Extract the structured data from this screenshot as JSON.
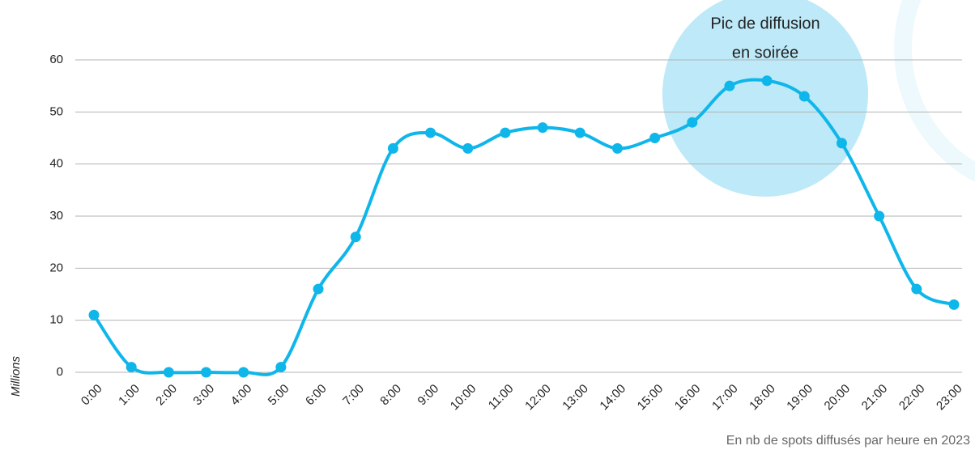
{
  "chart_data": {
    "type": "line",
    "annotation": [
      "Pic de diffusion",
      "en soirée"
    ],
    "y_axis_label": "Millions",
    "footnote": "En nb de spots diffusés par heure en 2023",
    "categories": [
      "0:00",
      "1:00",
      "2:00",
      "3:00",
      "4:00",
      "5:00",
      "6:00",
      "7:00",
      "8:00",
      "9:00",
      "10:00",
      "11:00",
      "12:00",
      "13:00",
      "14:00",
      "15:00",
      "16:00",
      "17:00",
      "18:00",
      "19:00",
      "20:00",
      "21:00",
      "22:00",
      "23:00"
    ],
    "series": [
      {
        "color": "#0fb6ea",
        "values": [
          11,
          1,
          0,
          0,
          0,
          1,
          16,
          26,
          43,
          46,
          43,
          46,
          47,
          46,
          43,
          45,
          48,
          55,
          56,
          53,
          44,
          30,
          16,
          13
        ]
      }
    ],
    "ylim": [
      0,
      60
    ],
    "yticks": [
      0,
      10,
      20,
      30,
      40,
      50,
      60
    ],
    "grid": true
  }
}
